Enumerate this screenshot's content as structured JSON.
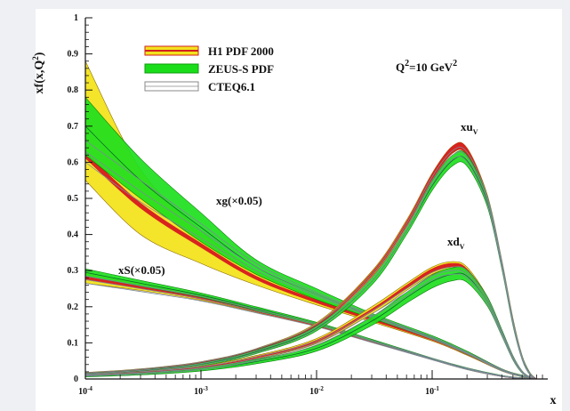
{
  "chart_data": {
    "type": "line",
    "title": "",
    "ylabel_main": "xf(x,Q",
    "ylabel_sup": "2",
    "ylabel_tail": ")",
    "xlabel": "x",
    "x_scale": "log",
    "xlim": [
      0.0001,
      1
    ],
    "ylim": [
      0,
      1
    ],
    "grid": false,
    "legend_position": "top-left",
    "annotation": {
      "main": "Q",
      "sup1": "2",
      "middle": "=10 GeV",
      "sup2": "2"
    },
    "y_ticks": [
      "0",
      "0.1",
      "0.2",
      "0.3",
      "0.4",
      "0.5",
      "0.6",
      "0.7",
      "0.8",
      "0.9",
      "1"
    ],
    "x_ticks": [
      {
        "base": "10",
        "exp": "-4",
        "value": 0.0001
      },
      {
        "base": "10",
        "exp": "-3",
        "value": 0.001
      },
      {
        "base": "10",
        "exp": "-2",
        "value": 0.01
      },
      {
        "base": "10",
        "exp": "-1",
        "value": 0.1
      }
    ],
    "legend": [
      {
        "label": "H1 PDF 2000",
        "fill": "#f2e21c",
        "edge": "#d21f1f"
      },
      {
        "label": "ZEUS-S PDF",
        "fill": "#19dd19",
        "edge": "#0f9a0f"
      },
      {
        "label": "CTEQ6.1",
        "fill": "#ffffff",
        "edge": "#8a8a8a"
      }
    ],
    "curve_labels": [
      {
        "main": "xu",
        "sub": "V",
        "id": "xuv"
      },
      {
        "main": "xd",
        "sub": "V",
        "id": "xdv"
      },
      {
        "main": "xg(×0.05)",
        "sub": "",
        "id": "xg"
      },
      {
        "main": "xS(×0.05)",
        "sub": "",
        "id": "xs"
      }
    ],
    "series": [
      {
        "id": "xg",
        "x": [
          0.0001,
          0.0003,
          0.001,
          0.003,
          0.01,
          0.03,
          0.1,
          0.2,
          0.4,
          0.6,
          0.8
        ],
        "h1": {
          "central": [
            0.62,
            0.48,
            0.37,
            0.28,
            0.215,
            0.165,
            0.11,
            0.07,
            0.025,
            0.008,
            0.0
          ],
          "upper": [
            0.88,
            0.58,
            0.41,
            0.3,
            0.225,
            0.172,
            0.115,
            0.074,
            0.028,
            0.01,
            0.0
          ],
          "lower": [
            0.55,
            0.4,
            0.32,
            0.26,
            0.205,
            0.158,
            0.105,
            0.066,
            0.022,
            0.006,
            0.0
          ]
        },
        "zeus": {
          "central": [
            0.7,
            0.55,
            0.42,
            0.31,
            0.235,
            0.175,
            0.115,
            0.073,
            0.026,
            0.008,
            0.0
          ],
          "upper": [
            0.78,
            0.61,
            0.46,
            0.33,
            0.25,
            0.182,
            0.12,
            0.077,
            0.028,
            0.01,
            0.0
          ],
          "lower": [
            0.62,
            0.5,
            0.38,
            0.29,
            0.22,
            0.168,
            0.11,
            0.069,
            0.024,
            0.006,
            0.0
          ]
        },
        "cteq": {
          "central": [
            0.63,
            0.52,
            0.41,
            0.31,
            0.235,
            0.175,
            0.113,
            0.072,
            0.025,
            0.008,
            0.0
          ],
          "upper": [
            0.66,
            0.55,
            0.43,
            0.32,
            0.24,
            0.178,
            0.116,
            0.074,
            0.027,
            0.009,
            0.0
          ],
          "lower": [
            0.6,
            0.49,
            0.39,
            0.3,
            0.23,
            0.172,
            0.11,
            0.07,
            0.023,
            0.007,
            0.0
          ]
        }
      },
      {
        "id": "xs",
        "x": [
          0.0001,
          0.0003,
          0.001,
          0.003,
          0.01,
          0.03,
          0.1,
          0.2,
          0.4,
          0.6,
          0.8
        ],
        "h1": {
          "central": [
            0.28,
            0.255,
            0.225,
            0.19,
            0.15,
            0.105,
            0.055,
            0.028,
            0.008,
            0.002,
            0.0
          ],
          "upper": [
            0.295,
            0.265,
            0.232,
            0.195,
            0.154,
            0.108,
            0.057,
            0.03,
            0.009,
            0.003,
            0.0
          ],
          "lower": [
            0.265,
            0.245,
            0.218,
            0.185,
            0.146,
            0.102,
            0.053,
            0.026,
            0.007,
            0.001,
            0.0
          ]
        },
        "zeus": {
          "central": [
            0.295,
            0.265,
            0.232,
            0.195,
            0.153,
            0.107,
            0.056,
            0.029,
            0.009,
            0.002,
            0.0
          ],
          "upper": [
            0.305,
            0.273,
            0.238,
            0.2,
            0.157,
            0.11,
            0.058,
            0.031,
            0.01,
            0.003,
            0.0
          ],
          "lower": [
            0.285,
            0.257,
            0.226,
            0.19,
            0.149,
            0.104,
            0.054,
            0.027,
            0.008,
            0.001,
            0.0
          ]
        },
        "cteq": {
          "central": [
            0.275,
            0.25,
            0.222,
            0.188,
            0.149,
            0.104,
            0.055,
            0.028,
            0.008,
            0.002,
            0.0
          ],
          "upper": [
            0.285,
            0.258,
            0.228,
            0.193,
            0.153,
            0.107,
            0.057,
            0.03,
            0.009,
            0.003,
            0.0
          ],
          "lower": [
            0.265,
            0.242,
            0.216,
            0.183,
            0.145,
            0.101,
            0.053,
            0.026,
            0.007,
            0.001,
            0.0
          ]
        }
      },
      {
        "id": "xuv",
        "x": [
          0.0001,
          0.0003,
          0.001,
          0.003,
          0.01,
          0.03,
          0.06,
          0.1,
          0.15,
          0.2,
          0.3,
          0.4,
          0.5,
          0.6,
          0.7,
          0.8
        ],
        "h1": {
          "central": [
            0.015,
            0.025,
            0.045,
            0.08,
            0.15,
            0.29,
            0.43,
            0.56,
            0.635,
            0.63,
            0.5,
            0.32,
            0.16,
            0.06,
            0.015,
            0.0
          ],
          "upper": [
            0.018,
            0.028,
            0.048,
            0.084,
            0.156,
            0.298,
            0.44,
            0.57,
            0.645,
            0.64,
            0.51,
            0.33,
            0.168,
            0.065,
            0.018,
            0.0
          ],
          "lower": [
            0.012,
            0.022,
            0.042,
            0.076,
            0.144,
            0.282,
            0.42,
            0.55,
            0.625,
            0.62,
            0.49,
            0.31,
            0.152,
            0.055,
            0.012,
            0.0
          ]
        },
        "zeus": {
          "central": [
            0.012,
            0.022,
            0.04,
            0.075,
            0.14,
            0.27,
            0.41,
            0.535,
            0.605,
            0.605,
            0.49,
            0.315,
            0.155,
            0.058,
            0.014,
            0.0
          ],
          "upper": [
            0.015,
            0.025,
            0.044,
            0.08,
            0.147,
            0.28,
            0.42,
            0.548,
            0.62,
            0.62,
            0.503,
            0.325,
            0.163,
            0.063,
            0.017,
            0.0
          ],
          "lower": [
            0.009,
            0.019,
            0.036,
            0.07,
            0.133,
            0.26,
            0.4,
            0.522,
            0.59,
            0.59,
            0.477,
            0.305,
            0.147,
            0.053,
            0.011,
            0.0
          ]
        },
        "cteq": {
          "central": [
            0.014,
            0.024,
            0.043,
            0.078,
            0.145,
            0.28,
            0.42,
            0.55,
            0.62,
            0.615,
            0.495,
            0.318,
            0.157,
            0.058,
            0.014,
            0.0
          ],
          "upper": [
            0.017,
            0.027,
            0.047,
            0.083,
            0.152,
            0.29,
            0.43,
            0.56,
            0.632,
            0.628,
            0.505,
            0.326,
            0.163,
            0.062,
            0.016,
            0.0
          ],
          "lower": [
            0.011,
            0.021,
            0.039,
            0.073,
            0.138,
            0.27,
            0.41,
            0.54,
            0.608,
            0.602,
            0.485,
            0.31,
            0.151,
            0.054,
            0.012,
            0.0
          ]
        }
      },
      {
        "id": "xdv",
        "x": [
          0.0001,
          0.0003,
          0.001,
          0.003,
          0.01,
          0.03,
          0.06,
          0.1,
          0.15,
          0.2,
          0.3,
          0.4,
          0.5,
          0.6,
          0.7,
          0.8
        ],
        "h1": {
          "central": [
            0.01,
            0.018,
            0.032,
            0.06,
            0.105,
            0.19,
            0.255,
            0.3,
            0.315,
            0.3,
            0.22,
            0.13,
            0.06,
            0.02,
            0.005,
            0.0
          ],
          "upper": [
            0.012,
            0.021,
            0.036,
            0.065,
            0.112,
            0.2,
            0.265,
            0.31,
            0.325,
            0.31,
            0.228,
            0.136,
            0.064,
            0.022,
            0.006,
            0.0
          ],
          "lower": [
            0.008,
            0.015,
            0.028,
            0.055,
            0.098,
            0.18,
            0.245,
            0.29,
            0.305,
            0.29,
            0.212,
            0.124,
            0.056,
            0.018,
            0.004,
            0.0
          ]
        },
        "zeus": {
          "central": [
            0.008,
            0.014,
            0.026,
            0.048,
            0.085,
            0.16,
            0.225,
            0.27,
            0.29,
            0.285,
            0.215,
            0.128,
            0.058,
            0.019,
            0.005,
            0.0
          ],
          "upper": [
            0.01,
            0.017,
            0.03,
            0.054,
            0.093,
            0.172,
            0.24,
            0.288,
            0.308,
            0.302,
            0.228,
            0.137,
            0.064,
            0.022,
            0.006,
            0.0
          ],
          "lower": [
            0.006,
            0.011,
            0.022,
            0.042,
            0.077,
            0.148,
            0.21,
            0.252,
            0.272,
            0.268,
            0.202,
            0.119,
            0.052,
            0.016,
            0.004,
            0.0
          ]
        },
        "cteq": {
          "central": [
            0.01,
            0.017,
            0.03,
            0.056,
            0.1,
            0.18,
            0.24,
            0.285,
            0.3,
            0.29,
            0.215,
            0.127,
            0.058,
            0.019,
            0.005,
            0.0
          ],
          "upper": [
            0.012,
            0.02,
            0.034,
            0.061,
            0.106,
            0.188,
            0.25,
            0.295,
            0.31,
            0.3,
            0.223,
            0.133,
            0.062,
            0.021,
            0.006,
            0.0
          ],
          "lower": [
            0.008,
            0.014,
            0.026,
            0.051,
            0.094,
            0.172,
            0.23,
            0.275,
            0.29,
            0.28,
            0.207,
            0.121,
            0.054,
            0.017,
            0.004,
            0.0
          ]
        }
      }
    ]
  }
}
